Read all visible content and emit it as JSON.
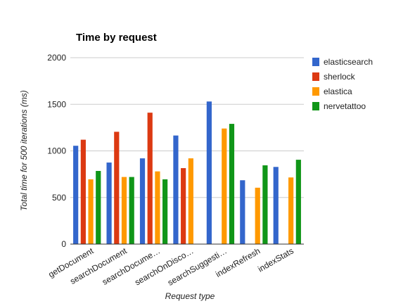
{
  "chart_data": {
    "type": "bar",
    "title": "Time by request",
    "xlabel": "Request type",
    "ylabel": "Total time for 500 iterations (ms)",
    "ylim": [
      0,
      2000
    ],
    "yticks": [
      "0",
      "500",
      "1000",
      "1500",
      "2000"
    ],
    "grid": true,
    "legend_position": "right",
    "categories": [
      "getDocument",
      "searchDocument",
      "searchDocume…",
      "searchOnDisco…",
      "searchSuggesti…",
      "indexRefresh",
      "indexStats"
    ],
    "series": [
      {
        "name": "elasticsearch",
        "color": "#3366cc",
        "values": [
          1055,
          875,
          920,
          1165,
          1530,
          685,
          828
        ]
      },
      {
        "name": "sherlock",
        "color": "#dc3912",
        "values": [
          1120,
          1205,
          1410,
          815,
          null,
          null,
          null
        ]
      },
      {
        "name": "elastica",
        "color": "#ff9900",
        "values": [
          695,
          720,
          780,
          920,
          1240,
          605,
          715
        ]
      },
      {
        "name": "nervetattoo",
        "color": "#109618",
        "values": [
          785,
          720,
          695,
          null,
          1290,
          845,
          905
        ]
      }
    ]
  }
}
